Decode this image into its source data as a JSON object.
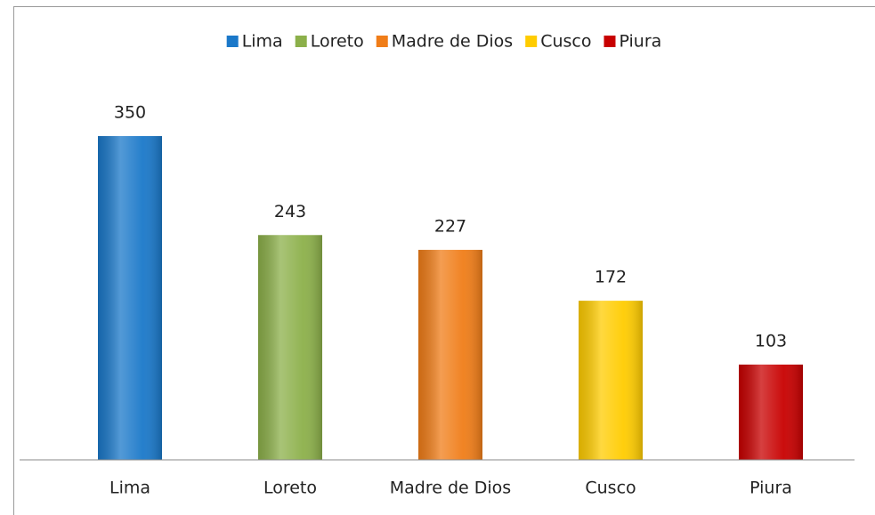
{
  "chart_data": {
    "type": "bar",
    "categories": [
      "Lima",
      "Loreto",
      "Madre de Dios",
      "Cusco",
      "Piura"
    ],
    "values": [
      350,
      243,
      227,
      172,
      103
    ],
    "colors": [
      "#1a78c9",
      "#8cb04a",
      "#f07d18",
      "#ffcc00",
      "#c80000"
    ],
    "ylim": [
      0,
      400
    ],
    "legend": "top"
  }
}
